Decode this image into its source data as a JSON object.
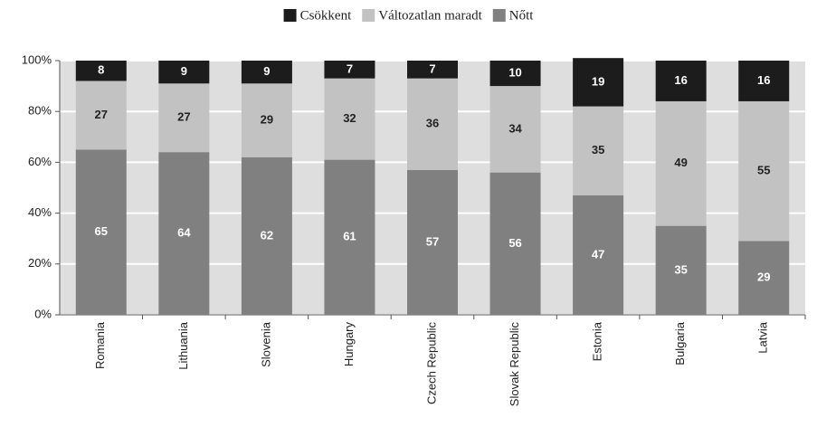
{
  "chart_data": {
    "type": "stacked_bar",
    "categories": [
      "Romania",
      "Lithuania",
      "Slovenia",
      "Hungary",
      "Czech Republic",
      "Slovak Republic",
      "Estonia",
      "Bulgaria",
      "Latvia"
    ],
    "series": [
      {
        "name": "Csökkent",
        "color": "#1c1c1c",
        "values": [
          8,
          9,
          9,
          7,
          7,
          10,
          19,
          16,
          16
        ]
      },
      {
        "name": "Változatlan maradt",
        "color": "#c2c2c2",
        "values": [
          27,
          27,
          29,
          32,
          36,
          34,
          35,
          49,
          55
        ]
      },
      {
        "name": "Nőtt",
        "color": "#808080",
        "values": [
          65,
          64,
          62,
          61,
          57,
          56,
          47,
          35,
          29
        ]
      }
    ],
    "ylim": [
      0,
      100
    ],
    "yticks": [
      {
        "value": 0,
        "label": "0%"
      },
      {
        "value": 20,
        "label": "20%"
      },
      {
        "value": 40,
        "label": "40%"
      },
      {
        "value": 60,
        "label": "60%"
      },
      {
        "value": 80,
        "label": "80%"
      },
      {
        "value": 100,
        "label": "100%"
      }
    ],
    "grid": true,
    "legend": "top"
  }
}
